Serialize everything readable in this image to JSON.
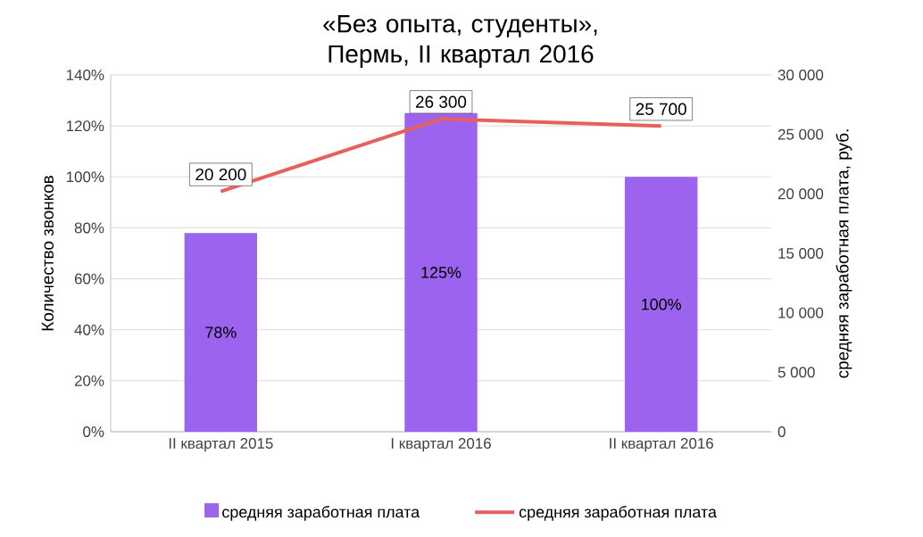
{
  "chart_data": {
    "type": "bar",
    "title": "«Без опыта, студенты», Пермь, II квартал 2016",
    "ylabel": "Количество  звонков",
    "y2label": "средняя заработная  плата, руб.",
    "categories": [
      "II квартал 2015",
      "I квартал 2016",
      "II квартал 2016"
    ],
    "series": [
      {
        "name": "средняя заработная плата",
        "color": "#9b63ee",
        "values": [
          78,
          125,
          100
        ],
        "value_labels": [
          "78%",
          "125%",
          "100%"
        ]
      },
      {
        "name": "средняя заработная плата",
        "type": "line",
        "axis": "y2",
        "color": "#e8605c",
        "values": [
          20200,
          26300,
          25700
        ],
        "value_labels": [
          "20 200",
          "26 300",
          "25 700"
        ]
      }
    ],
    "ylim": [
      0,
      140
    ],
    "yticks": [
      {
        "value": 0,
        "label": "0%"
      },
      {
        "value": 20,
        "label": "20%"
      },
      {
        "value": 40,
        "label": "40%"
      },
      {
        "value": 60,
        "label": "60%"
      },
      {
        "value": 80,
        "label": "80%"
      },
      {
        "value": 100,
        "label": "100%"
      },
      {
        "value": 120,
        "label": "120%"
      },
      {
        "value": 140,
        "label": "140%"
      }
    ],
    "y2lim": [
      0,
      30000
    ],
    "y2ticks": [
      {
        "value": 0,
        "label": "0"
      },
      {
        "value": 5000,
        "label": "5 000"
      },
      {
        "value": 10000,
        "label": "10 000"
      },
      {
        "value": 15000,
        "label": "15 000"
      },
      {
        "value": 20000,
        "label": "20 000"
      },
      {
        "value": 25000,
        "label": "25 000"
      },
      {
        "value": 30000,
        "label": "30 000"
      }
    ],
    "grid": "y",
    "legend": "bottom",
    "line_style": "solid",
    "marker": "none"
  }
}
